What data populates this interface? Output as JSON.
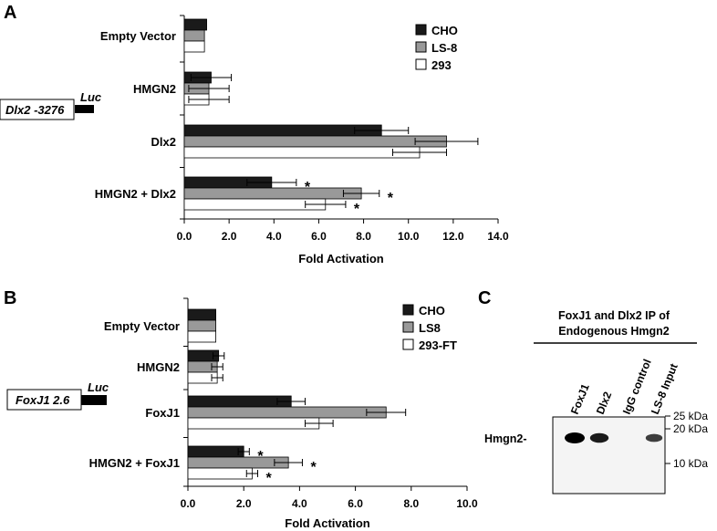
{
  "figure": {
    "panel_a_letter": "A",
    "panel_b_letter": "B",
    "panel_c_letter": "C"
  },
  "chart_data": [
    {
      "type": "bar",
      "orientation": "horizontal",
      "panel": "A",
      "categories": [
        "Empty Vector",
        "HMGN2",
        "Dlx2",
        "HMGN2 + Dlx2"
      ],
      "series": [
        {
          "name": "CHO",
          "color": "#1a1a1a",
          "values": [
            1.0,
            1.2,
            8.8,
            3.9
          ],
          "errors": [
            0.0,
            0.9,
            1.2,
            1.1
          ]
        },
        {
          "name": "LS-8",
          "color": "#999999",
          "values": [
            0.9,
            1.1,
            11.7,
            7.9
          ],
          "errors": [
            0.0,
            0.9,
            1.4,
            0.8
          ]
        },
        {
          "name": "293",
          "color": "#ffffff",
          "values": [
            0.9,
            1.1,
            10.5,
            6.3
          ],
          "errors": [
            0.0,
            0.9,
            1.2,
            0.9
          ]
        }
      ],
      "significance": [
        {
          "category": "HMGN2 + Dlx2",
          "series": "CHO",
          "label": "*"
        },
        {
          "category": "HMGN2 + Dlx2",
          "series": "LS-8",
          "label": "*"
        },
        {
          "category": "HMGN2 + Dlx2",
          "series": "293",
          "label": "*"
        }
      ],
      "xlim": [
        0,
        14
      ],
      "xticks": [
        0,
        2,
        4,
        6,
        8,
        10,
        12,
        14
      ],
      "tick_labels": [
        "0.0",
        "2.0",
        "4.0",
        "6.0",
        "8.0",
        "10.0",
        "12.0",
        "14.0"
      ],
      "xlabel": "Fold Activation",
      "construct": "Dlx2 -3276",
      "reporter": "Luc"
    },
    {
      "type": "bar",
      "orientation": "horizontal",
      "panel": "B",
      "categories": [
        "Empty Vector",
        "HMGN2",
        "FoxJ1",
        "HMGN2 + FoxJ1"
      ],
      "series": [
        {
          "name": "CHO",
          "color": "#1a1a1a",
          "values": [
            1.0,
            1.1,
            3.7,
            2.0
          ],
          "errors": [
            0.0,
            0.2,
            0.5,
            0.2
          ]
        },
        {
          "name": "LS8",
          "color": "#999999",
          "values": [
            1.0,
            1.05,
            7.1,
            3.6
          ],
          "errors": [
            0.0,
            0.2,
            0.7,
            0.5
          ]
        },
        {
          "name": "293-FT",
          "color": "#ffffff",
          "values": [
            1.0,
            1.05,
            4.7,
            2.3
          ],
          "errors": [
            0.0,
            0.2,
            0.5,
            0.2
          ]
        }
      ],
      "significance": [
        {
          "category": "HMGN2 + FoxJ1",
          "series": "CHO",
          "label": "*"
        },
        {
          "category": "HMGN2 + FoxJ1",
          "series": "LS8",
          "label": "*"
        },
        {
          "category": "HMGN2 + FoxJ1",
          "series": "293-FT",
          "label": "*"
        }
      ],
      "xlim": [
        0,
        10
      ],
      "xticks": [
        0,
        2,
        4,
        6,
        8,
        10
      ],
      "tick_labels": [
        "0.0",
        "2.0",
        "4.0",
        "6.0",
        "8.0",
        "10.0"
      ],
      "xlabel": "Fold Activation",
      "construct": "FoxJ1 2.6",
      "reporter": "Luc"
    }
  ],
  "blot": {
    "title_line1": "FoxJ1 and Dlx2 IP of",
    "title_line2": "Endogenous Hmgn2",
    "lanes": [
      "FoxJ1",
      "Dlx2",
      "IgG control",
      "LS-8 Input"
    ],
    "band_label": "Hmgn2-",
    "markers": [
      {
        "label": "25 kDa",
        "kda": 25
      },
      {
        "label": "20 kDa",
        "kda": 20
      },
      {
        "label": "10 kDa",
        "kda": 10
      }
    ],
    "band_intensity": [
      1.0,
      0.8,
      0.0,
      0.55
    ]
  }
}
